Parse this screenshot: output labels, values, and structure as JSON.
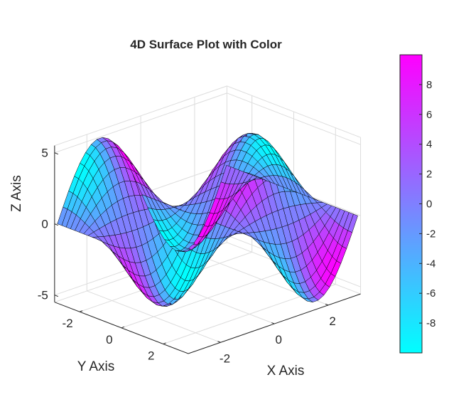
{
  "chart_data": {
    "type": "surface",
    "title": "4D Surface Plot with Color",
    "xlabel": "X Axis",
    "ylabel": "Y Axis",
    "zlabel": "Z Axis",
    "xlim": [
      -3.2,
      3.2
    ],
    "ylim": [
      -3.2,
      3.2
    ],
    "zlim": [
      -5.5,
      5.5
    ],
    "x_ticks": [
      -2,
      0,
      2
    ],
    "y_ticks": [
      -2,
      0,
      2
    ],
    "z_ticks": [
      -5,
      0,
      5
    ],
    "x_tick_labels": [
      "-2",
      "0",
      "2"
    ],
    "y_tick_labels": [
      "-2",
      "0",
      "2"
    ],
    "z_tick_labels": [
      "-5",
      "0",
      "5"
    ],
    "grid": true,
    "colormap": "cool",
    "colormap_low": "#00ffff",
    "colormap_high": "#ff00ff",
    "color_range": [
      -10,
      10
    ],
    "colorbar_ticks": [
      8,
      6,
      4,
      2,
      0,
      -2,
      -4,
      -6,
      -8
    ],
    "colorbar_tick_labels": [
      "8",
      "6",
      "4",
      "2",
      "0",
      "-2",
      "-4",
      "-6",
      "-8"
    ],
    "colorbar_placement": "right",
    "grid_resolution": 30,
    "surface_function": "z = 5*sin(x)*cos(y); color = 10*sin(2x)*cos(y)"
  }
}
